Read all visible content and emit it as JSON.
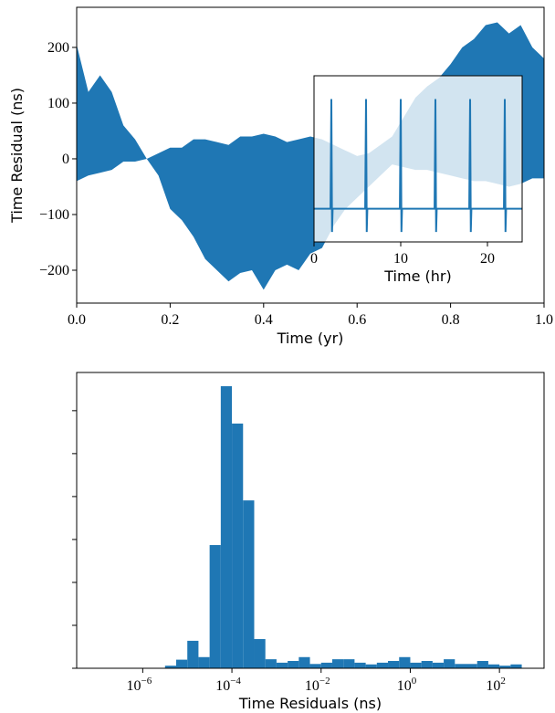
{
  "chart_data": [
    {
      "type": "fill_between",
      "color": "#1f77b4",
      "xlabel": "Time (yr)",
      "ylabel": "Time Residual (ns)",
      "x": [
        0,
        0.025,
        0.05,
        0.075,
        0.1,
        0.125,
        0.15,
        0.175,
        0.2,
        0.225,
        0.25,
        0.275,
        0.3,
        0.325,
        0.35,
        0.375,
        0.4,
        0.425,
        0.45,
        0.475,
        0.5,
        0.525,
        0.55,
        0.575,
        0.6,
        0.625,
        0.65,
        0.675,
        0.7,
        0.725,
        0.75,
        0.775,
        0.8,
        0.825,
        0.85,
        0.875,
        0.9,
        0.925,
        0.95,
        0.975,
        1
      ],
      "upper": [
        205,
        120,
        150,
        120,
        60,
        35,
        0,
        10,
        20,
        20,
        35,
        35,
        30,
        25,
        40,
        40,
        45,
        40,
        30,
        35,
        40,
        35,
        25,
        15,
        5,
        10,
        25,
        40,
        75,
        110,
        130,
        145,
        170,
        200,
        215,
        240,
        245,
        225,
        240,
        200,
        180
      ],
      "lower": [
        -40,
        -30,
        -25,
        -20,
        -5,
        -5,
        0,
        -30,
        -90,
        -110,
        -140,
        -180,
        -200,
        -220,
        -205,
        -200,
        -235,
        -200,
        -190,
        -200,
        -170,
        -160,
        -120,
        -90,
        -70,
        -50,
        -30,
        -10,
        -15,
        -20,
        -20,
        -25,
        -30,
        -35,
        -40,
        -40,
        -45,
        -50,
        -45,
        -35,
        -35
      ],
      "xlim": [
        0,
        1
      ],
      "ylim": [
        -259,
        272
      ],
      "xticks": [
        {
          "value": 0,
          "label": "0.0"
        },
        {
          "value": 0.2,
          "label": "0.2"
        },
        {
          "value": 0.4,
          "label": "0.4"
        },
        {
          "value": 0.6,
          "label": "0.6"
        },
        {
          "value": 0.8,
          "label": "0.8"
        },
        {
          "value": 1,
          "label": "1.0"
        }
      ],
      "yticks": [
        {
          "value": -200,
          "label": "−200"
        },
        {
          "value": -100,
          "label": "−100"
        },
        0,
        100,
        200
      ]
    },
    {
      "type": "line",
      "color": "#1f77b4",
      "xlabel": "Time (hr)",
      "x": [
        0,
        1.9,
        2,
        2.08,
        2.15,
        5.9,
        6,
        6.08,
        6.15,
        9.9,
        10,
        10.08,
        10.15,
        13.9,
        14,
        14.08,
        14.15,
        17.9,
        18,
        18.08,
        18.15,
        21.9,
        22,
        22.08,
        22.15,
        24
      ],
      "values": [
        0,
        0,
        3.3,
        -0.7,
        0,
        0,
        3.3,
        -0.7,
        0,
        0,
        3.3,
        -0.7,
        0,
        0,
        3.3,
        -0.7,
        0,
        0,
        3.3,
        -0.7,
        0,
        0,
        3.3,
        -0.7,
        0,
        0
      ],
      "xlim": [
        0,
        24
      ],
      "ylim": [
        -1,
        4
      ],
      "xticks": [
        0,
        10,
        20
      ]
    },
    {
      "type": "histogram",
      "color": "#1f77b4",
      "xlabel": "Time Residuals (ns)",
      "log_x": true,
      "bins": [
        3.162e-06,
        5.623e-06,
        1e-05,
        1.778e-05,
        3.162e-05,
        5.623e-05,
        0.0001,
        0.0001778,
        0.0003162,
        0.0005623,
        0.001,
        0.001778,
        0.003162,
        0.005623,
        0.01,
        0.01778,
        0.03162,
        0.05623,
        0.1,
        0.1778,
        0.3162,
        0.5623,
        1,
        1.778,
        3.162,
        5.623,
        10,
        17.78,
        31.62,
        56.23,
        100,
        177.8,
        316.2
      ],
      "counts": [
        0.06,
        0.2,
        0.64,
        0.26,
        2.87,
        6.57,
        5.7,
        3.91,
        0.68,
        0.21,
        0.13,
        0.17,
        0.26,
        0.1,
        0.13,
        0.21,
        0.21,
        0.13,
        0.09,
        0.13,
        0.17,
        0.26,
        0.13,
        0.17,
        0.13,
        0.21,
        0.1,
        0.1,
        0.17,
        0.09,
        0.06,
        0.09
      ],
      "xlim": [
        3.3e-08,
        1000
      ],
      "ylim": [
        0,
        6.89
      ],
      "xticks": [
        {
          "value": 1e-06,
          "label": "10",
          "exponent": "−6"
        },
        {
          "value": 0.0001,
          "label": "10",
          "exponent": "−4"
        },
        {
          "value": 0.01,
          "label": "10",
          "exponent": "−2"
        },
        {
          "value": 1,
          "label": "10",
          "exponent": "0"
        },
        {
          "value": 100,
          "label": "10",
          "exponent": "2"
        }
      ],
      "yticks": [
        0,
        1,
        2,
        3,
        4,
        5,
        6
      ]
    }
  ]
}
